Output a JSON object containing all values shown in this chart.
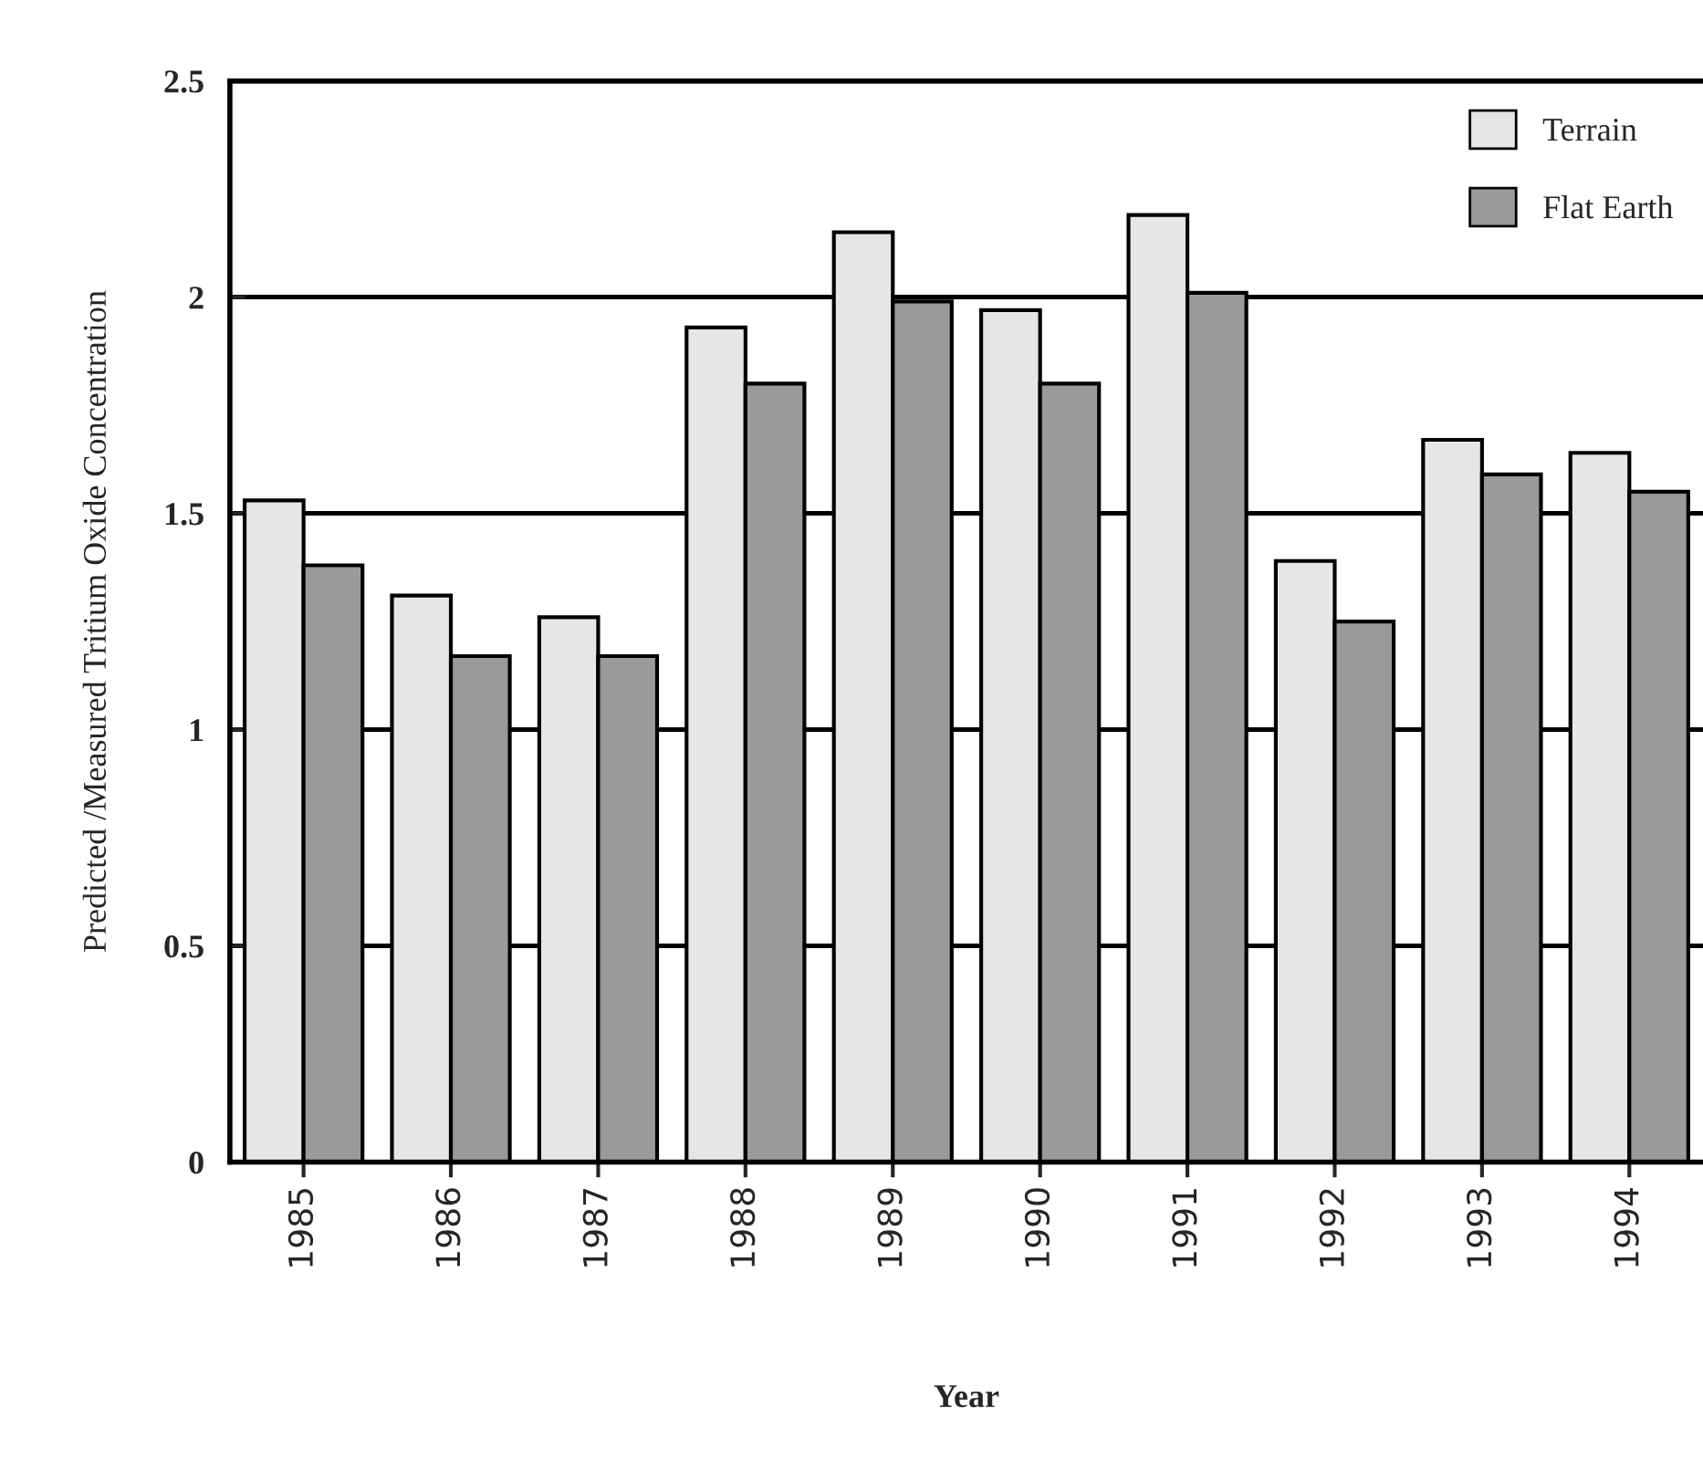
{
  "chart_data": {
    "type": "bar",
    "xlabel": "Year",
    "ylabel": "Predicted /Measured Tritium Oxide Concentration",
    "categories": [
      "1985",
      "1986",
      "1987",
      "1988",
      "1989",
      "1990",
      "1991",
      "1992",
      "1993",
      "1994"
    ],
    "series": [
      {
        "name": "Terrain",
        "color": "#e6e6e6",
        "values": [
          1.53,
          1.31,
          1.26,
          1.93,
          2.15,
          1.97,
          2.19,
          1.39,
          1.67,
          1.64
        ]
      },
      {
        "name": "Flat Earth",
        "color": "#9a9a9a",
        "values": [
          1.38,
          1.17,
          1.17,
          1.8,
          1.99,
          1.8,
          2.01,
          1.25,
          1.59,
          1.55
        ]
      }
    ],
    "ylim": [
      0,
      2.5
    ],
    "yticks": [
      0,
      0.5,
      1,
      1.5,
      2,
      2.5
    ],
    "grid": "y",
    "legend": "top right"
  }
}
